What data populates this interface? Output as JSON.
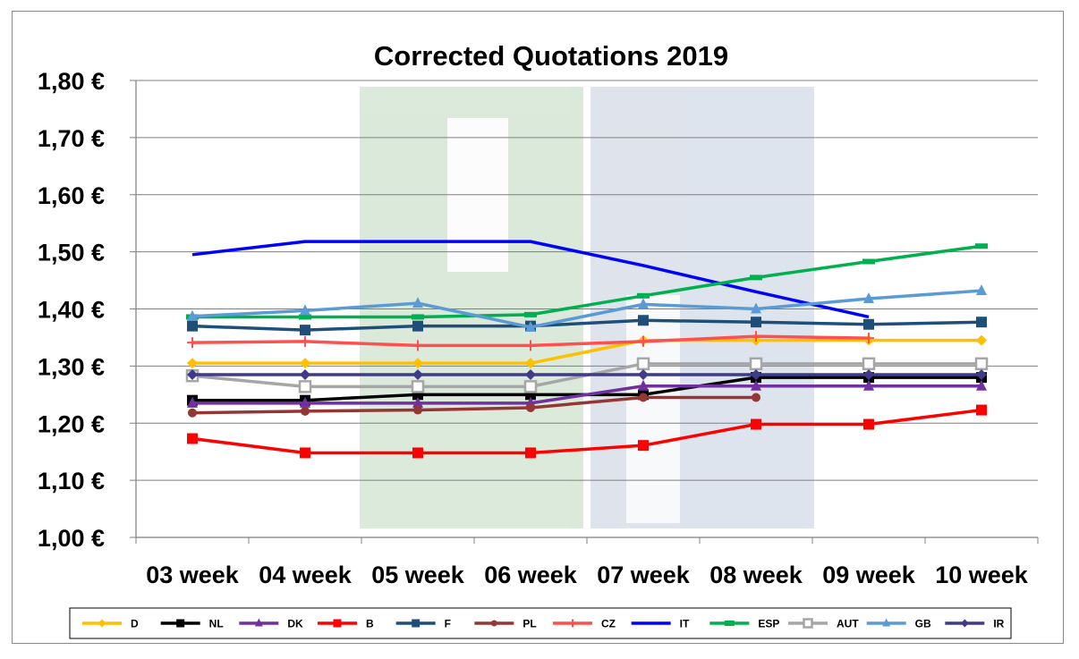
{
  "chart_data": {
    "type": "line",
    "title": "Corrected Quotations 2019",
    "xlabel": "",
    "ylabel": "",
    "categories": [
      "03 week",
      "04 week",
      "05 week",
      "06 week",
      "07 week",
      "08 week",
      "09 week",
      "10 week"
    ],
    "y_ticks": [
      "1,00 €",
      "1,10 €",
      "1,20 €",
      "1,30 €",
      "1,40 €",
      "1,50 €",
      "1,60 €",
      "1,70 €",
      "1,80 €"
    ],
    "ylim": [
      1.0,
      1.8
    ],
    "grid": true,
    "legend_position": "bottom",
    "series": [
      {
        "name": "D",
        "color": "#FFC000",
        "marker": "diamond",
        "values": [
          1.305,
          1.305,
          1.305,
          1.305,
          1.345,
          1.345,
          1.345,
          1.345
        ]
      },
      {
        "name": "NL",
        "color": "#000000",
        "marker": "square",
        "values": [
          1.24,
          1.24,
          1.25,
          1.25,
          1.25,
          1.28,
          1.28,
          1.28
        ]
      },
      {
        "name": "DK",
        "color": "#7030A0",
        "marker": "triangle",
        "values": [
          1.235,
          1.235,
          1.235,
          1.235,
          1.265,
          1.265,
          1.265,
          1.265
        ]
      },
      {
        "name": "B",
        "color": "#FF0000",
        "marker": "square",
        "values": [
          1.173,
          1.148,
          1.148,
          1.148,
          1.161,
          1.198,
          1.198,
          1.223
        ]
      },
      {
        "name": "F",
        "color": "#1F4E79",
        "marker": "square",
        "values": [
          1.37,
          1.363,
          1.37,
          1.37,
          1.38,
          1.377,
          1.373,
          1.377
        ]
      },
      {
        "name": "PL",
        "color": "#943634",
        "marker": "circle",
        "values": [
          1.218,
          1.221,
          1.223,
          1.227,
          1.245,
          1.245,
          null,
          null
        ]
      },
      {
        "name": "CZ",
        "color": "#FF5050",
        "marker": "plus",
        "values": [
          1.341,
          1.343,
          1.336,
          1.336,
          1.343,
          1.352,
          1.349,
          null
        ]
      },
      {
        "name": "IT",
        "color": "#0000FF",
        "marker": "none",
        "values": [
          1.495,
          1.518,
          1.518,
          1.518,
          1.476,
          1.43,
          1.386,
          null
        ]
      },
      {
        "name": "ESP",
        "color": "#00B050",
        "marker": "dash",
        "values": [
          1.386,
          1.386,
          1.386,
          1.39,
          1.423,
          1.455,
          1.483,
          1.51
        ]
      },
      {
        "name": "AUT",
        "color": "#A6A6A6",
        "marker": "square-open",
        "values": [
          1.283,
          1.264,
          1.264,
          1.264,
          1.304,
          1.304,
          1.304,
          1.304
        ]
      },
      {
        "name": "GB",
        "color": "#5B9BD5",
        "marker": "triangle",
        "values": [
          1.387,
          1.397,
          1.41,
          1.368,
          1.408,
          1.4,
          1.418,
          1.432
        ]
      },
      {
        "name": "IR",
        "color": "#403A8A",
        "marker": "diamond",
        "values": [
          1.285,
          1.285,
          1.285,
          1.285,
          1.285,
          1.285,
          1.285,
          1.285
        ]
      }
    ]
  }
}
